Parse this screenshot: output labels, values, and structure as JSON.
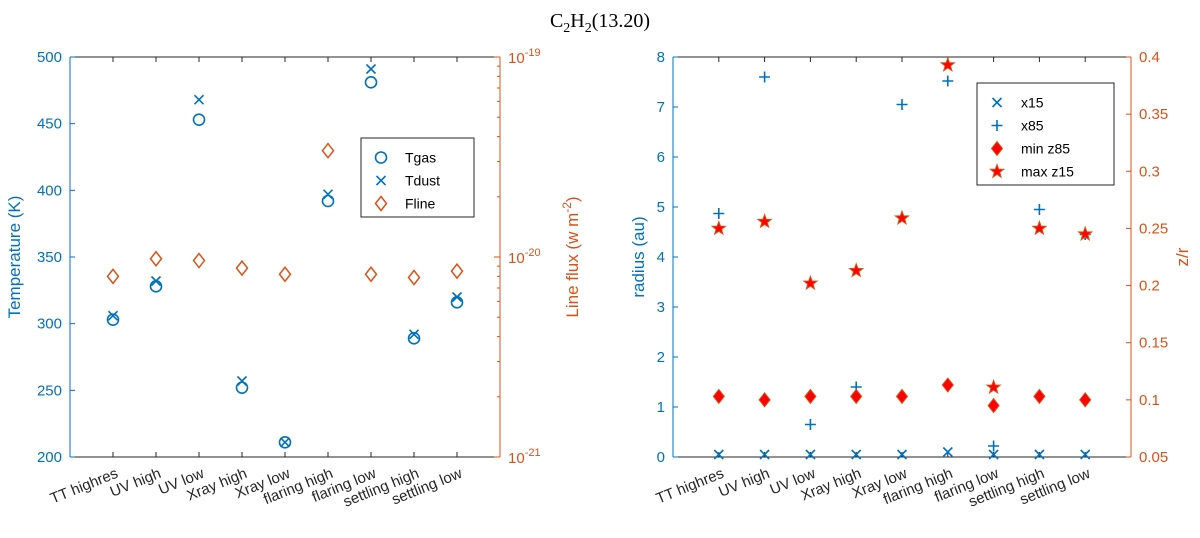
{
  "figure_title": {
    "main": "C",
    "sub1": "2",
    "mid": "H",
    "sub2": "2",
    "tail": "(13.20)"
  },
  "colors": {
    "blue": "#0072BD",
    "orange": "#D95319",
    "red": "#FF0000"
  },
  "chart_data": [
    {
      "type": "scatter",
      "categories": [
        "TT highres",
        "UV high",
        "UV low",
        "Xray high",
        "Xray low",
        "flaring high",
        "flaring low",
        "settling high",
        "settling low"
      ],
      "left_axis": {
        "label": "Temperature (K)",
        "ylim": [
          200,
          500
        ],
        "ticks": [
          "200",
          "250",
          "300",
          "350",
          "400",
          "450",
          "500"
        ]
      },
      "right_axis": {
        "label_main": "Line flux (w m",
        "label_sup": "-2",
        "label_end": ")",
        "scale": "log",
        "ylim": [
          1e-21,
          1e-19
        ],
        "ticks": [
          {
            "value": 1e-21,
            "base": "10",
            "exp": "-21"
          },
          {
            "value": 1e-20,
            "base": "10",
            "exp": "-20"
          },
          {
            "value": 1e-19,
            "base": "10",
            "exp": "-19"
          }
        ]
      },
      "legend": {
        "position": "upper-right",
        "entries": [
          "Tgas",
          "Tdust",
          "Fline"
        ]
      },
      "series": [
        {
          "name": "Tgas",
          "axis": "left",
          "marker": "circle",
          "values": [
            303,
            328,
            453,
            252,
            211,
            392,
            481,
            289,
            316
          ]
        },
        {
          "name": "Tdust",
          "axis": "left",
          "marker": "x",
          "values": [
            306,
            332,
            468,
            257,
            211,
            397,
            491,
            292,
            320
          ]
        },
        {
          "name": "Fline",
          "axis": "right",
          "marker": "diamond",
          "values": [
            8e-21,
            9.8e-21,
            9.6e-21,
            8.8e-21,
            8.2e-21,
            3.4e-20,
            8.2e-21,
            7.9e-21,
            8.5e-21
          ]
        }
      ]
    },
    {
      "type": "scatter",
      "categories": [
        "TT highres",
        "UV high",
        "UV low",
        "Xray high",
        "Xray low",
        "flaring high",
        "flaring low",
        "settling high",
        "settling low"
      ],
      "left_axis": {
        "label": "radius (au)",
        "ylim": [
          0,
          8
        ],
        "ticks": [
          "0",
          "1",
          "2",
          "3",
          "4",
          "5",
          "6",
          "7",
          "8"
        ]
      },
      "right_axis": {
        "label": "z/r",
        "ylim": [
          0.05,
          0.4
        ],
        "ticks": [
          "0.05",
          "0.1",
          "0.15",
          "0.2",
          "0.25",
          "0.3",
          "0.35",
          "0.4"
        ]
      },
      "legend": {
        "position": "upper-right",
        "entries": [
          "x15",
          "x85",
          "min z85",
          "max z15"
        ]
      },
      "series": [
        {
          "name": "x15",
          "axis": "left",
          "marker": "x",
          "values": [
            0.05,
            0.05,
            0.05,
            0.05,
            0.05,
            0.1,
            0.05,
            0.05,
            0.05
          ]
        },
        {
          "name": "x85",
          "axis": "left",
          "marker": "plus",
          "values": [
            4.87,
            7.6,
            0.65,
            1.4,
            7.05,
            7.52,
            0.22,
            4.95,
            4.45
          ]
        },
        {
          "name": "min z85",
          "axis": "right",
          "marker": "diamond",
          "values": [
            0.103,
            0.1,
            0.103,
            0.103,
            0.103,
            0.113,
            0.095,
            0.103,
            0.1
          ]
        },
        {
          "name": "max z15",
          "axis": "right",
          "marker": "star",
          "values": [
            0.25,
            0.256,
            0.202,
            0.213,
            0.259,
            0.393,
            0.111,
            0.25,
            0.245
          ]
        }
      ]
    }
  ]
}
